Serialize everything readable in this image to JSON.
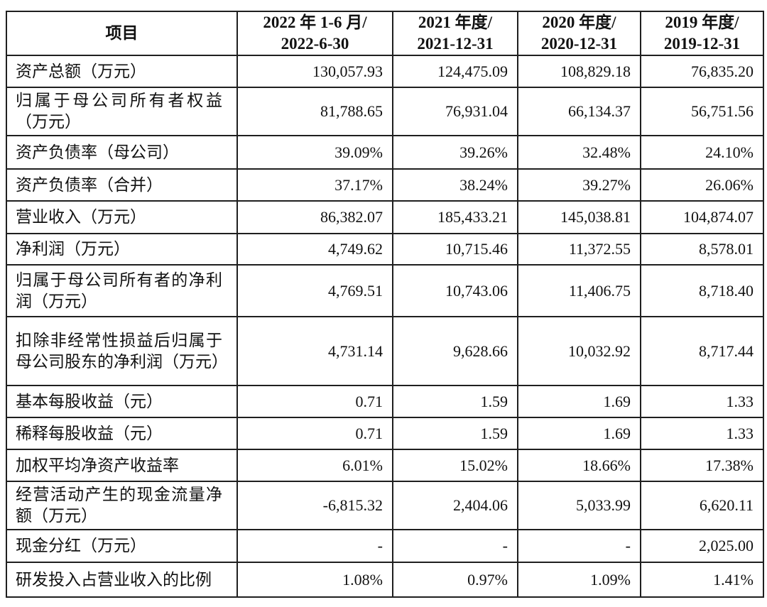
{
  "page": {
    "background_color": "#ffffff",
    "text_color": "#111111",
    "border_color": "#1f1f1f"
  },
  "table": {
    "columns": [
      {
        "line1": "项目",
        "line2": ""
      },
      {
        "line1": "2022 年 1-6 月/",
        "line2": "2022-6-30"
      },
      {
        "line1": "2021 年度/",
        "line2": "2021-12-31"
      },
      {
        "line1": "2020 年度/",
        "line2": "2020-12-31"
      },
      {
        "line1": "2019 年度/",
        "line2": "2019-12-31"
      }
    ],
    "rows": [
      {
        "label": "资产总额（万元）",
        "values": [
          "130,057.93",
          "124,475.09",
          "108,829.18",
          "76,835.20"
        ]
      },
      {
        "label": "归属于母公司所有者权益（万元）",
        "values": [
          "81,788.65",
          "76,931.04",
          "66,134.37",
          "56,751.56"
        ]
      },
      {
        "label": "资产负债率（母公司）",
        "values": [
          "39.09%",
          "39.26%",
          "32.48%",
          "24.10%"
        ]
      },
      {
        "label": "资产负债率（合并）",
        "values": [
          "37.17%",
          "38.24%",
          "39.27%",
          "26.06%"
        ]
      },
      {
        "label": "营业收入（万元）",
        "values": [
          "86,382.07",
          "185,433.21",
          "145,038.81",
          "104,874.07"
        ]
      },
      {
        "label": "净利润（万元）",
        "values": [
          "4,749.62",
          "10,715.46",
          "11,372.55",
          "8,578.01"
        ]
      },
      {
        "label": "归属于母公司所有者的净利润（万元）",
        "values": [
          "4,769.51",
          "10,743.06",
          "11,406.75",
          "8,718.40"
        ]
      },
      {
        "label": "扣除非经常性损益后归属于母公司股东的净利润（万元）",
        "values": [
          "4,731.14",
          "9,628.66",
          "10,032.92",
          "8,717.44"
        ]
      },
      {
        "label": "基本每股收益（元）",
        "values": [
          "0.71",
          "1.59",
          "1.69",
          "1.33"
        ]
      },
      {
        "label": "稀释每股收益（元）",
        "values": [
          "0.71",
          "1.59",
          "1.69",
          "1.33"
        ]
      },
      {
        "label": "加权平均净资产收益率",
        "values": [
          "6.01%",
          "15.02%",
          "18.66%",
          "17.38%"
        ]
      },
      {
        "label": "经营活动产生的现金流量净额（万元）",
        "values": [
          "-6,815.32",
          "2,404.06",
          "5,033.99",
          "6,620.11"
        ]
      },
      {
        "label": "现金分红（万元）",
        "values": [
          "-",
          "-",
          "-",
          "2,025.00"
        ]
      },
      {
        "label": "研发投入占营业收入的比例",
        "values": [
          "1.08%",
          "0.97%",
          "1.09%",
          "1.41%"
        ]
      }
    ]
  }
}
